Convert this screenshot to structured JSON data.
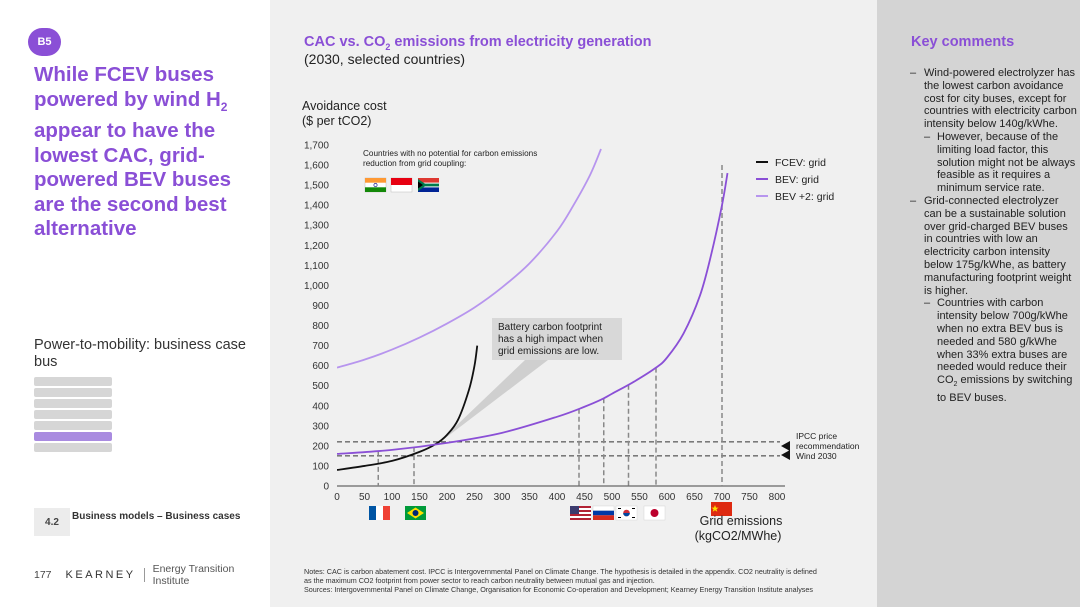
{
  "left": {
    "badge": "B5",
    "headline": {
      "part1": "While FCEV buses powered by wind H",
      "sub": "2",
      "part2": " appear to have the lowest CAC, grid-powered BEV buses are the second best alternative"
    },
    "subtitle": "Power-to-mobility: business case bus",
    "section_number": "4.2",
    "section_label": "Business models – Business cases",
    "page_number": "177",
    "logo_brand": "KEARNEY",
    "logo_institute": "Energy Transition Institute"
  },
  "chart_header": {
    "title_part1": "CAC vs. CO",
    "title_sub": "2",
    "title_part2": " emissions from electricity generation",
    "subtitle": "(2030, selected countries)"
  },
  "notes": {
    "line1": "Notes: CAC is carbon abatement cost. IPCC is Intergovernmental Panel on Climate Change. The hypothesis is detailed in the appendix. CO2 neutrality is defined",
    "line2": "as the maximum CO2 footprint from power sector to reach carbon neutrality between mutual gas and injection.",
    "line3": "Sources: Intergovernmental Panel on Climate Change, Organisation for Economic Co-operation and Development; Kearney Energy Transition Institute analyses"
  },
  "key_comments": {
    "title": "Key comments",
    "items": [
      {
        "level": 1,
        "text": "Wind-powered electrolyzer has the lowest carbon avoidance cost for city buses, except for countries with electricity carbon intensity below 140g/kWhe."
      },
      {
        "level": 2,
        "text": "However, because of the limiting load factor, this solution might not be always feasible as it requires a minimum service rate."
      },
      {
        "level": 1,
        "text": "Grid-connected electrolyzer can be a sustainable solution over grid-charged BEV buses in countries with low an electricity carbon intensity below 175g/kWhe, as battery manufacturing footprint weight is higher."
      },
      {
        "level": 2,
        "text_before": "Countries with carbon intensity below 700g/kWhe when no extra BEV bus is needed and 580 g/kWhe when 33% extra buses are needed would reduce their CO",
        "sub": "2",
        "text_after": " emissions by switching to BEV buses."
      }
    ]
  },
  "colors": {
    "accent": "#8a4fd6",
    "fcev": "#111111",
    "bev": "#8a4fd6",
    "bev_plus2": "#b795ee"
  },
  "chart_data": {
    "type": "line",
    "ylabel_line1": "Avoidance cost",
    "ylabel_line2": "($ per tCO2)",
    "xlabel_line1": "Grid emissions",
    "xlabel_line2": "(kgCO2/MWhe)",
    "xlim": [
      0,
      800
    ],
    "ylim": [
      0,
      1700
    ],
    "xticks": [
      0,
      50,
      100,
      150,
      200,
      250,
      300,
      350,
      400,
      450,
      500,
      550,
      600,
      650,
      700,
      750,
      800
    ],
    "yticks": [
      0,
      100,
      200,
      300,
      400,
      500,
      600,
      700,
      800,
      900,
      1000,
      1100,
      1200,
      1300,
      1400,
      1500,
      1600,
      1700
    ],
    "series": [
      {
        "name": "FCEV: grid",
        "color": "#111111",
        "points": [
          [
            0,
            80
          ],
          [
            50,
            100
          ],
          [
            100,
            125
          ],
          [
            150,
            170
          ],
          [
            180,
            210
          ],
          [
            200,
            255
          ],
          [
            220,
            330
          ],
          [
            240,
            480
          ],
          [
            250,
            600
          ],
          [
            255,
            700
          ]
        ]
      },
      {
        "name": "BEV: grid",
        "color": "#8a4fd6",
        "points": [
          [
            0,
            160
          ],
          [
            100,
            180
          ],
          [
            200,
            215
          ],
          [
            300,
            265
          ],
          [
            400,
            345
          ],
          [
            450,
            395
          ],
          [
            480,
            430
          ],
          [
            500,
            460
          ],
          [
            540,
            520
          ],
          [
            580,
            590
          ],
          [
            600,
            640
          ],
          [
            630,
            760
          ],
          [
            660,
            950
          ],
          [
            680,
            1150
          ],
          [
            700,
            1400
          ],
          [
            710,
            1560
          ]
        ]
      },
      {
        "name": "BEV +2: grid",
        "color": "#b795ee",
        "points": [
          [
            0,
            590
          ],
          [
            50,
            630
          ],
          [
            100,
            680
          ],
          [
            150,
            740
          ],
          [
            200,
            810
          ],
          [
            250,
            890
          ],
          [
            300,
            990
          ],
          [
            350,
            1110
          ],
          [
            400,
            1270
          ],
          [
            430,
            1400
          ],
          [
            460,
            1550
          ],
          [
            480,
            1680
          ]
        ]
      }
    ],
    "reference_lines": [
      {
        "label_line1": "IPCC price",
        "label_line2": "recommendation",
        "y": 220
      },
      {
        "label_line1": "Wind 2030",
        "y": 150
      }
    ],
    "vertical_markers_x": [
      75,
      140,
      440,
      485,
      530,
      580,
      700
    ],
    "annotations": {
      "countries_note_line1": "Countries with no potential for carbon emissions",
      "countries_note_line2": "reduction from grid coupling:",
      "battery_note_line1": "Battery carbon footprint",
      "battery_note_line2": "has a high impact when",
      "battery_note_line3": "grid emissions are low."
    },
    "legend_position": "top-right",
    "country_flags_no_potential": [
      "India",
      "Indonesia",
      "South Africa"
    ],
    "country_flags_axis": [
      {
        "country": "France",
        "x": 75
      },
      {
        "country": "Brazil",
        "x": 140
      },
      {
        "country": "United States",
        "x": 440
      },
      {
        "country": "Russia",
        "x": 485
      },
      {
        "country": "South Korea",
        "x": 530
      },
      {
        "country": "Japan",
        "x": 580
      },
      {
        "country": "China",
        "x": 700
      }
    ]
  }
}
